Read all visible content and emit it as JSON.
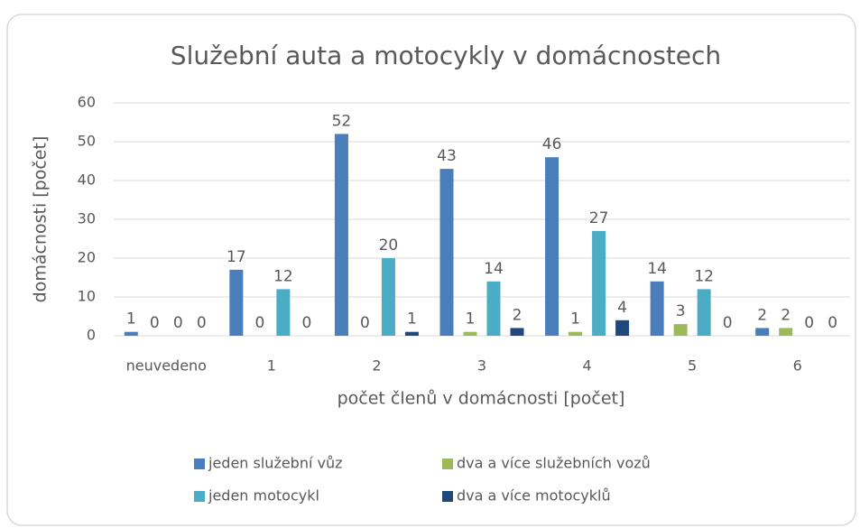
{
  "chart_data": {
    "type": "bar",
    "title": "Služební auta a motocykly v domácnostech",
    "x_label": "počet členů v domácnosti [počet]",
    "y_label": "domácnosti [počet]",
    "categories": [
      "neuvedeno",
      "1",
      "2",
      "3",
      "4",
      "5",
      "6"
    ],
    "series": [
      {
        "name": "jeden služební vůz",
        "color": "#4a7ebb",
        "values": [
          1,
          17,
          52,
          43,
          46,
          14,
          2
        ]
      },
      {
        "name": "dva a více služebních vozů",
        "color": "#9bbb59",
        "values": [
          0,
          0,
          0,
          1,
          1,
          3,
          2
        ]
      },
      {
        "name": "jeden motocykl",
        "color": "#4bacc6",
        "values": [
          0,
          12,
          20,
          14,
          27,
          12,
          0
        ]
      },
      {
        "name": "dva a více motocyklů",
        "color": "#1f497d",
        "values": [
          0,
          0,
          1,
          2,
          4,
          0,
          0
        ]
      }
    ],
    "ylim": [
      0,
      60
    ],
    "yticks": [
      0,
      10,
      20,
      30,
      40,
      50,
      60
    ],
    "grid": true,
    "legend": "bottom"
  }
}
